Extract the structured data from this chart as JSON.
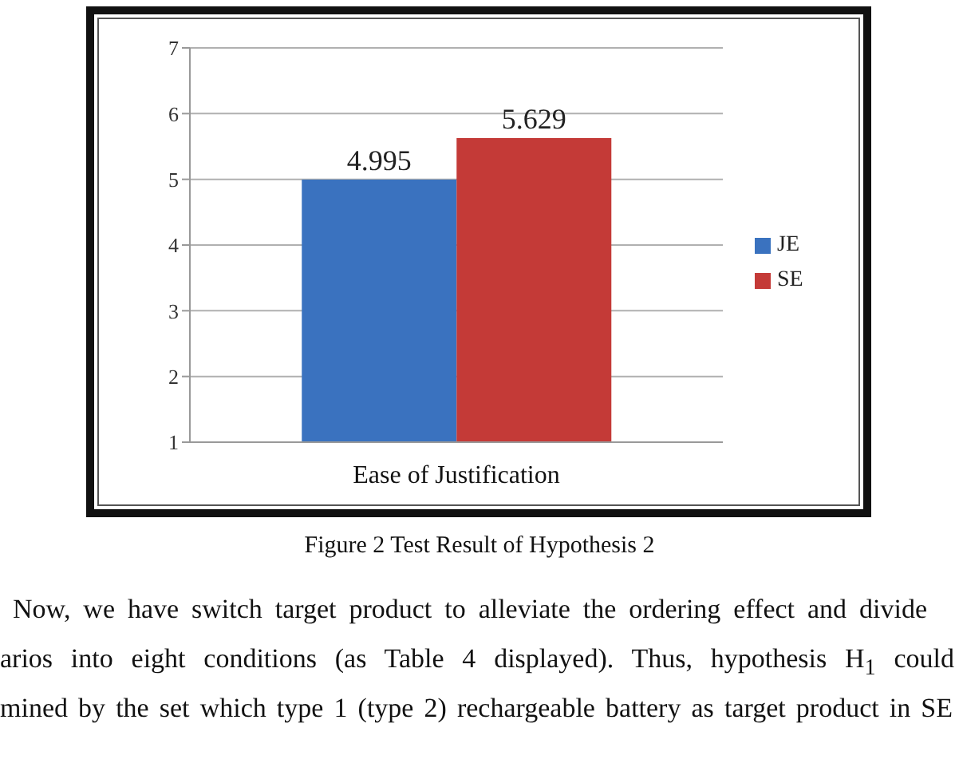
{
  "chart_data": {
    "type": "bar",
    "categories": [
      "Ease of Justification"
    ],
    "series": [
      {
        "name": "JE",
        "color": "#3a72bf",
        "values": [
          4.995
        ]
      },
      {
        "name": "SE",
        "color": "#c43a37",
        "values": [
          5.629
        ]
      }
    ],
    "ylim": [
      1,
      7
    ],
    "yticks": [
      1,
      2,
      3,
      4,
      5,
      6,
      7
    ],
    "grid": "y",
    "legend": "right",
    "data_labels": true,
    "annotations": [
      "Figure 2 Test Result of Hypothesis 2",
      "Now, we have switch target product to alleviate the ordering effect and divide",
      "arios into eight conditions (as Table 4 displayed). Thus, hypothesis H$_{1}$ could",
      "mined by the set which type 1 (type 2) rechargeable battery as target product in SE"
    ]
  }
}
